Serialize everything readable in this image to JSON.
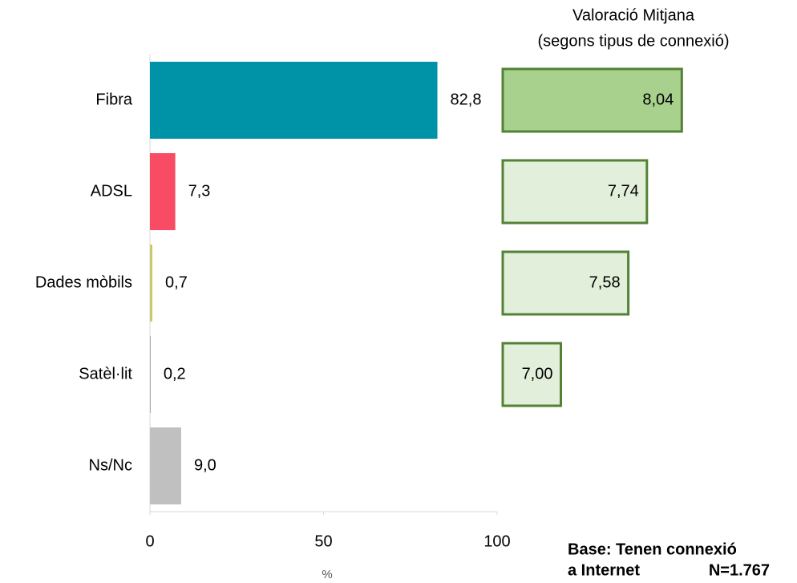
{
  "chart_data": [
    {
      "type": "hbar",
      "categories": [
        "Fibra",
        "ADSL",
        "Dades mòbils",
        "Satèl·lit",
        "Ns/Nc"
      ],
      "values": [
        82.8,
        7.3,
        0.7,
        0.2,
        9.0
      ],
      "value_labels": [
        "82,8",
        "7,3",
        "0,7",
        "0,2",
        "9,0"
      ],
      "colors": [
        "#0092a6",
        "#f84c64",
        "#c9c96b",
        "#a0a0a0",
        "#c0c0c0"
      ],
      "xlim": [
        0,
        100
      ],
      "xticks": [
        0,
        50,
        100
      ],
      "x_label": "%"
    },
    {
      "type": "hbar",
      "title": "Valoració Mitjana",
      "subtitle": "(segons tipus de connexió)",
      "values": [
        8.04,
        7.74,
        7.58,
        7.0
      ],
      "value_labels": [
        "8,04",
        "7,74",
        "7,58",
        "7,00"
      ],
      "colors": [
        "#a9d18e",
        "#e2efda",
        "#e2efda",
        "#e2efda"
      ],
      "edge_color": "#548235",
      "xlim": [
        6.5,
        8.5
      ]
    }
  ],
  "footnote": [
    "Base: Tenen connexió",
    "a Internet",
    "N=1.767"
  ]
}
